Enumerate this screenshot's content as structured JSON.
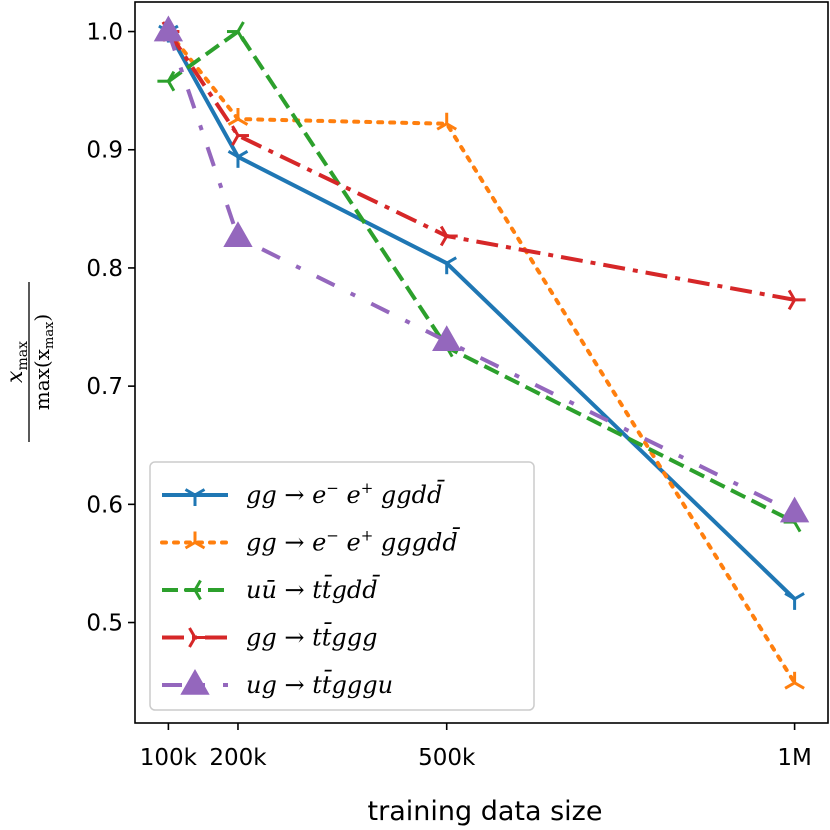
{
  "chart_data": {
    "type": "line",
    "xlabel": "training data size",
    "ylabel": {
      "numerator": "x",
      "numerator_sub": "max",
      "denominator": "max(x",
      "denominator_sub": "max",
      "denominator_close": ")"
    },
    "ylim": [
      0.415,
      1.025
    ],
    "yticks": [
      0.5,
      0.6,
      0.7,
      0.8,
      0.9,
      1.0
    ],
    "ytick_labels": [
      "0.5",
      "0.6",
      "0.7",
      "0.8",
      "0.9",
      "1.0"
    ],
    "xlim": [
      52000,
      1048000
    ],
    "xticks": [
      100000,
      200000,
      500000,
      1000000
    ],
    "xtick_labels": [
      "100k",
      "200k",
      "500k",
      "1M"
    ],
    "legend_position": "lower-left",
    "series": [
      {
        "name": "gg → e⁻ e⁺ g g d d̄",
        "label_parts": [
          "gg → e",
          "−",
          " e",
          "+",
          " ggdd̄"
        ],
        "color": "#1f77b4",
        "dash": "solid",
        "marker": "tri_down",
        "x": [
          100000,
          200000,
          500000,
          1000000
        ],
        "values": [
          1.0,
          0.894,
          0.804,
          0.52
        ]
      },
      {
        "name": "gg → e⁻ e⁺ g g g d d̄",
        "label_parts": [
          "gg → e",
          "−",
          " e",
          "+",
          " gggdd̄"
        ],
        "color": "#ff7f0e",
        "dash": "dotted",
        "marker": "tri_up",
        "x": [
          100000,
          200000,
          500000,
          1000000
        ],
        "values": [
          1.0,
          0.926,
          0.922,
          0.449
        ]
      },
      {
        "name": "uū → t t̄ g d d̄",
        "label_parts": [
          "uū → tt̄gdd̄"
        ],
        "color": "#2ca02c",
        "dash": "dashed",
        "marker": "tri_left",
        "x": [
          100000,
          200000,
          500000,
          1000000
        ],
        "values": [
          0.958,
          1.0,
          0.733,
          0.585
        ]
      },
      {
        "name": "gg → t t̄ g g g",
        "label_parts": [
          "gg → tt̄ggg"
        ],
        "color": "#d62728",
        "dash": "dashdot",
        "marker": "tri_right",
        "x": [
          100000,
          200000,
          500000,
          1000000
        ],
        "values": [
          1.0,
          0.912,
          0.827,
          0.773
        ]
      },
      {
        "name": "ug → t t̄ g g g u",
        "label_parts": [
          "ug → tt̄gggu"
        ],
        "color": "#9467bd",
        "dash": "loose-dashdot",
        "marker": "triangle",
        "x": [
          100000,
          200000,
          500000,
          1000000
        ],
        "values": [
          1.0,
          0.826,
          0.738,
          0.593
        ]
      }
    ]
  }
}
